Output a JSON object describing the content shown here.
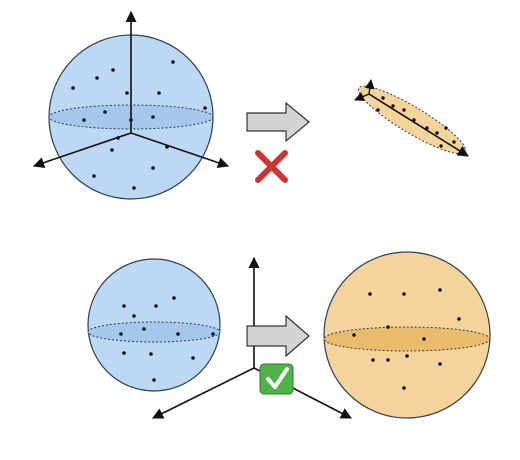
{
  "colors": {
    "blue_fill": "#bcd8f5",
    "blue_dark": "#a5c7ec",
    "blue_outline": "#2c3e55",
    "orange_fill": "#f5d49b",
    "orange_dark": "#e9bc6c",
    "arrow_fill": "#d4d4d4",
    "cross": "#cc3333",
    "check_bg": "#4fb24a",
    "axis": "#111111",
    "dot": "#111111"
  },
  "icons": {
    "wrong": "cross-icon",
    "right": "checkmark-icon",
    "transform": "right-arrow-icon"
  },
  "panels": {
    "top": {
      "input": "blue-sphere",
      "output": "flattened-ellipsoid",
      "verdict": "incorrect"
    },
    "bottom": {
      "input": "blue-sphere",
      "output": "orange-sphere",
      "verdict": "correct"
    }
  }
}
